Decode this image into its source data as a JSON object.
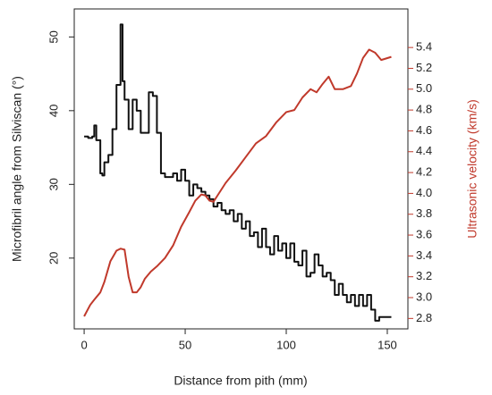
{
  "chart_data": {
    "type": "line",
    "x_label": "Distance from pith (mm)",
    "y_label": "Microfibril angle from Silviscan (°)",
    "y2_label": "Ultrasonic velocity (km/s)",
    "xlim": [
      -4.9,
      160.2
    ],
    "xticks": [
      0,
      50,
      100,
      150
    ],
    "ylim": [
      10.4,
      53.8
    ],
    "yticks": [
      20,
      30,
      40,
      50
    ],
    "y2lim": [
      2.7,
      5.77
    ],
    "y2ticks": [
      2.8,
      {
        "value": 3,
        "label": "3.0"
      },
      3.2,
      3.4,
      3.6,
      3.8,
      {
        "value": 4,
        "label": "4.0"
      },
      4.2,
      4.4,
      4.6,
      4.8,
      {
        "value": 5,
        "label": "5.0"
      },
      5.2,
      5.4
    ],
    "y2_color": "#c0392b",
    "series": [
      {
        "color": "#111111",
        "axis": "y",
        "drawstyle": "steps-post",
        "x": [
          0,
          2,
          4,
          5,
          6,
          8,
          9,
          10,
          12,
          14,
          16,
          18,
          19,
          20,
          22,
          24,
          26,
          28,
          30,
          32,
          34,
          36,
          38,
          40,
          42,
          44,
          46,
          48,
          50,
          52,
          54,
          56,
          58,
          60,
          62,
          64,
          66,
          68,
          70,
          72,
          74,
          76,
          78,
          80,
          82,
          84,
          86,
          88,
          90,
          92,
          94,
          96,
          98,
          100,
          102,
          104,
          106,
          108,
          110,
          112,
          114,
          116,
          118,
          120,
          122,
          124,
          126,
          128,
          130,
          132,
          134,
          136,
          138,
          140,
          142,
          144,
          146,
          148,
          150,
          152
        ],
        "values": [
          36.5,
          36.3,
          36.5,
          38,
          36,
          31.5,
          31.2,
          33,
          34,
          37.5,
          43.5,
          51.7,
          44,
          41.5,
          37.5,
          41.5,
          40,
          37,
          37,
          42.5,
          42,
          37,
          31.5,
          31,
          31,
          31.5,
          30.5,
          32,
          30.5,
          28.5,
          30,
          29.5,
          29,
          28.5,
          28,
          27,
          27.5,
          26.5,
          26,
          26.5,
          25,
          26,
          24,
          25,
          23,
          23.5,
          21.5,
          24,
          21.5,
          20.5,
          23,
          21,
          22,
          20,
          22,
          19.5,
          19,
          21,
          17.5,
          18,
          20.5,
          19,
          17.5,
          18,
          17,
          15,
          16.5,
          15,
          14,
          15,
          13.5,
          15,
          13.5,
          15,
          13,
          11.5,
          12,
          12,
          12,
          12
        ]
      },
      {
        "color": "#c0392b",
        "axis": "y2",
        "x": [
          0,
          3,
          5,
          8,
          10,
          13,
          16,
          18,
          20,
          22,
          24,
          26,
          28,
          30,
          33,
          36,
          40,
          44,
          48,
          52,
          55,
          58,
          60,
          62,
          64,
          66,
          70,
          75,
          80,
          85,
          90,
          95,
          100,
          104,
          108,
          112,
          115,
          118,
          121,
          124,
          128,
          132,
          135,
          138,
          141,
          144,
          147,
          152
        ],
        "values": [
          2.82,
          2.93,
          2.98,
          3.05,
          3.15,
          3.35,
          3.45,
          3.47,
          3.46,
          3.2,
          3.05,
          3.05,
          3.1,
          3.18,
          3.25,
          3.3,
          3.38,
          3.5,
          3.68,
          3.82,
          3.93,
          3.99,
          3.98,
          3.93,
          3.92,
          3.98,
          4.1,
          4.22,
          4.35,
          4.48,
          4.55,
          4.68,
          4.78,
          4.8,
          4.92,
          5.0,
          4.97,
          5.05,
          5.12,
          5.0,
          5.0,
          5.03,
          5.15,
          5.3,
          5.38,
          5.35,
          5.28,
          5.31
        ]
      }
    ]
  }
}
